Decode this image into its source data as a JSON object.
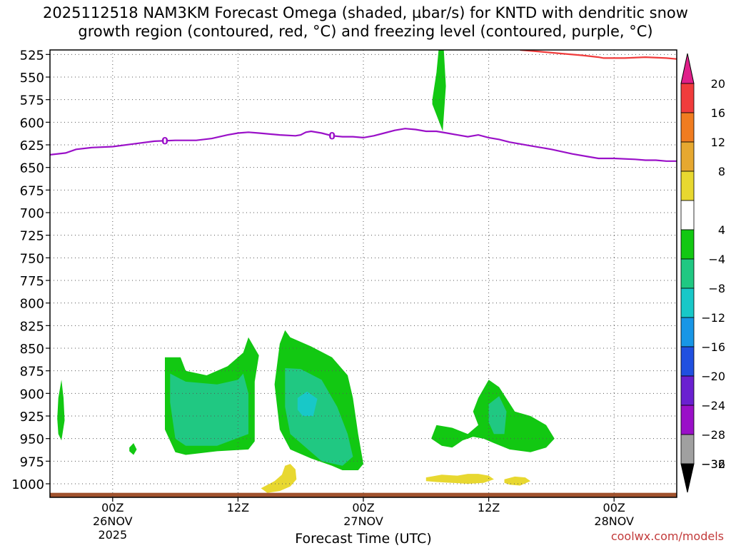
{
  "title_line1": "2025112518 NAM3KM Forecast Omega (shaded, µbar/s) for KNTD with dendritic snow",
  "title_line2": "growth region (contoured, red, °C) and freezing level (contoured, purple, °C)",
  "credit": "coolwx.com/models",
  "chart_data": {
    "type": "heatmap",
    "xlabel": "Forecast Time (UTC)",
    "ylabel": "",
    "x_range_hours": [
      0,
      60
    ],
    "y_range_hpa": [
      520,
      1015
    ],
    "y_ticks": [
      525,
      550,
      575,
      600,
      625,
      650,
      675,
      700,
      725,
      750,
      775,
      800,
      825,
      850,
      875,
      900,
      925,
      950,
      975,
      1000
    ],
    "x_ticks": [
      {
        "hour": 6,
        "lines": [
          "00Z",
          "26NOV",
          "2025"
        ]
      },
      {
        "hour": 18,
        "lines": [
          "12Z"
        ]
      },
      {
        "hour": 30,
        "lines": [
          "00Z",
          "27NOV"
        ]
      },
      {
        "hour": 42,
        "lines": [
          "12Z"
        ]
      },
      {
        "hour": 54,
        "lines": [
          "00Z",
          "28NOV"
        ]
      }
    ],
    "grid": true,
    "colorbar": {
      "labels": [
        "20",
        "16",
        "12",
        "8",
        "4",
        "−4",
        "−8",
        "−12",
        "−16",
        "−20",
        "−24",
        "−28",
        "−32",
        "−36"
      ],
      "bands": [
        {
          "from": 16,
          "to": 20,
          "color": "#f03c3c"
        },
        {
          "from": 12,
          "to": 16,
          "color": "#f07c20"
        },
        {
          "from": 8,
          "to": 12,
          "color": "#e6a830"
        },
        {
          "from": 4,
          "to": 8,
          "color": "#e8d830"
        },
        {
          "from": -4,
          "to": 4,
          "color": "#ffffff"
        },
        {
          "from": -8,
          "to": -4,
          "color": "#12c812"
        },
        {
          "from": -12,
          "to": -8,
          "color": "#20c882"
        },
        {
          "from": -16,
          "to": -12,
          "color": "#18c8c8"
        },
        {
          "from": -20,
          "to": -16,
          "color": "#1896e6"
        },
        {
          "from": -24,
          "to": -20,
          "color": "#2050e0"
        },
        {
          "from": -28,
          "to": -24,
          "color": "#6a20d0"
        },
        {
          "from": -32,
          "to": -28,
          "color": "#9a10c8"
        },
        {
          "from": -36,
          "to": -32,
          "color": "#a0a0a0"
        }
      ],
      "top_arrow_color": "#e0208a",
      "bottom_arrow_color": "#000000"
    },
    "freezing_level": {
      "label": "0",
      "color": "#9a10c8",
      "points": [
        [
          0,
          636
        ],
        [
          1.5,
          634
        ],
        [
          2.5,
          630
        ],
        [
          4,
          628
        ],
        [
          6,
          627
        ],
        [
          8,
          624
        ],
        [
          10,
          621
        ],
        [
          12,
          620
        ],
        [
          14,
          620
        ],
        [
          15.5,
          618
        ],
        [
          17,
          614
        ],
        [
          18,
          612
        ],
        [
          19,
          611
        ],
        [
          20,
          612
        ],
        [
          22,
          614
        ],
        [
          23.5,
          615
        ],
        [
          24,
          614
        ],
        [
          24.5,
          611
        ],
        [
          25,
          610
        ],
        [
          26,
          612
        ],
        [
          27,
          615
        ],
        [
          28,
          616
        ],
        [
          29,
          616
        ],
        [
          30,
          617
        ],
        [
          31,
          615
        ],
        [
          32,
          612
        ],
        [
          33,
          609
        ],
        [
          34,
          607
        ],
        [
          35,
          608
        ],
        [
          36,
          610
        ],
        [
          37,
          610
        ],
        [
          38,
          612
        ],
        [
          39,
          614
        ],
        [
          40,
          616
        ],
        [
          41,
          614
        ],
        [
          42,
          617
        ],
        [
          43,
          619
        ],
        [
          44,
          622
        ],
        [
          46,
          626
        ],
        [
          48,
          630
        ],
        [
          50,
          635
        ],
        [
          51.5,
          638
        ],
        [
          52.5,
          640
        ],
        [
          54,
          640
        ],
        [
          56,
          641
        ],
        [
          57,
          642
        ],
        [
          58,
          642
        ],
        [
          59,
          643
        ],
        [
          60,
          643
        ]
      ],
      "label_hours": [
        11,
        27
      ]
    },
    "dgz_contour": {
      "color": "#f03c3c",
      "points": [
        [
          45,
          520
        ],
        [
          47,
          522
        ],
        [
          49,
          524
        ],
        [
          51,
          526
        ],
        [
          52.5,
          528
        ],
        [
          53,
          529
        ],
        [
          55,
          529
        ],
        [
          57,
          528
        ],
        [
          59,
          529
        ],
        [
          60,
          530
        ]
      ]
    },
    "ground": {
      "from_hpa": 1010,
      "color": "#a0522d"
    },
    "omega_regions": [
      {
        "value": -6,
        "points": [
          [
            11,
            860
          ],
          [
            12.5,
            860
          ],
          [
            13,
            875
          ],
          [
            15,
            880
          ],
          [
            17,
            870
          ],
          [
            18.5,
            855
          ],
          [
            19,
            838
          ],
          [
            20,
            858
          ],
          [
            19.6,
            887
          ],
          [
            19.6,
            953
          ],
          [
            19,
            962
          ],
          [
            16,
            964
          ],
          [
            13,
            968
          ],
          [
            12,
            965
          ],
          [
            11,
            940
          ]
        ]
      },
      {
        "value": -10,
        "points": [
          [
            11.5,
            878
          ],
          [
            13,
            887
          ],
          [
            16,
            890
          ],
          [
            18,
            885
          ],
          [
            18.5,
            878
          ],
          [
            19,
            900
          ],
          [
            19,
            945
          ],
          [
            16,
            958
          ],
          [
            13,
            958
          ],
          [
            12,
            950
          ],
          [
            11.5,
            910
          ]
        ]
      },
      {
        "value": -6,
        "points": [
          [
            22,
            845
          ],
          [
            22.5,
            830
          ],
          [
            23,
            838
          ],
          [
            25,
            848
          ],
          [
            27,
            860
          ],
          [
            28.5,
            880
          ],
          [
            29,
            905
          ],
          [
            29.5,
            945
          ],
          [
            30,
            978
          ],
          [
            29.5,
            985
          ],
          [
            28,
            985
          ],
          [
            27,
            980
          ],
          [
            25,
            972
          ],
          [
            23,
            962
          ],
          [
            22,
            940
          ],
          [
            21.5,
            890
          ]
        ]
      },
      {
        "value": -10,
        "points": [
          [
            22.5,
            872
          ],
          [
            24,
            873
          ],
          [
            26,
            885
          ],
          [
            27.5,
            915
          ],
          [
            28.5,
            945
          ],
          [
            29,
            970
          ],
          [
            28,
            980
          ],
          [
            26,
            975
          ],
          [
            24.5,
            960
          ],
          [
            23,
            945
          ],
          [
            22.5,
            915
          ]
        ]
      },
      {
        "value": -14,
        "points": [
          [
            23.7,
            905
          ],
          [
            24.6,
            898
          ],
          [
            25.6,
            906
          ],
          [
            25.2,
            925
          ],
          [
            24.2,
            925
          ],
          [
            23.7,
            918
          ]
        ]
      },
      {
        "value": -6,
        "points": [
          [
            41,
            905
          ],
          [
            42,
            885
          ],
          [
            43,
            893
          ],
          [
            44.5,
            920
          ],
          [
            46,
            925
          ],
          [
            47.5,
            935
          ],
          [
            48.3,
            950
          ],
          [
            47.5,
            960
          ],
          [
            46,
            965
          ],
          [
            44,
            962
          ],
          [
            42.5,
            955
          ],
          [
            41.5,
            950
          ],
          [
            40.5,
            948
          ],
          [
            39.5,
            952
          ],
          [
            38.5,
            960
          ],
          [
            37.5,
            958
          ],
          [
            36.5,
            950
          ],
          [
            37,
            935
          ],
          [
            38.5,
            938
          ],
          [
            40,
            945
          ],
          [
            41,
            935
          ],
          [
            40.5,
            920
          ]
        ]
      },
      {
        "value": -10,
        "points": [
          [
            42,
            912
          ],
          [
            43,
            903
          ],
          [
            43.7,
            920
          ],
          [
            43.5,
            945
          ],
          [
            42.5,
            945
          ],
          [
            42,
            932
          ]
        ]
      },
      {
        "value": -6,
        "points": [
          [
            36.6,
            575
          ],
          [
            37,
            545
          ],
          [
            37.2,
            520
          ],
          [
            37.7,
            520
          ],
          [
            37.9,
            560
          ],
          [
            37.6,
            610
          ],
          [
            36.6,
            580
          ]
        ]
      },
      {
        "value": -6,
        "points": [
          [
            0.7,
            928
          ],
          [
            0.8,
            905
          ],
          [
            1.1,
            885
          ],
          [
            1.3,
            905
          ],
          [
            1.4,
            930
          ],
          [
            1.1,
            952
          ],
          [
            0.8,
            945
          ]
        ]
      },
      {
        "value": -6,
        "points": [
          [
            7.6,
            960
          ],
          [
            8.0,
            955
          ],
          [
            8.3,
            962
          ],
          [
            8.0,
            968
          ],
          [
            7.6,
            964
          ]
        ]
      },
      {
        "value": 5,
        "points": [
          [
            20.2,
            1005
          ],
          [
            21.5,
            997
          ],
          [
            22.2,
            990
          ],
          [
            22.5,
            980
          ],
          [
            23,
            978
          ],
          [
            23.5,
            984
          ],
          [
            23.6,
            995
          ],
          [
            23,
            1003
          ],
          [
            22,
            1008
          ],
          [
            20.8,
            1010
          ]
        ]
      },
      {
        "value": 5,
        "points": [
          [
            36,
            993
          ],
          [
            37.5,
            990
          ],
          [
            39,
            991
          ],
          [
            40,
            989
          ],
          [
            41,
            989
          ],
          [
            42,
            991
          ],
          [
            42.5,
            995
          ],
          [
            41.5,
            999
          ],
          [
            40,
            1000
          ],
          [
            38.5,
            999
          ],
          [
            37,
            998
          ],
          [
            36,
            997
          ]
        ]
      },
      {
        "value": 5,
        "points": [
          [
            43.5,
            995
          ],
          [
            44.5,
            992
          ],
          [
            45.5,
            993
          ],
          [
            46,
            997
          ],
          [
            45,
            1002
          ],
          [
            44,
            1001
          ],
          [
            43.5,
            999
          ]
        ]
      }
    ]
  }
}
